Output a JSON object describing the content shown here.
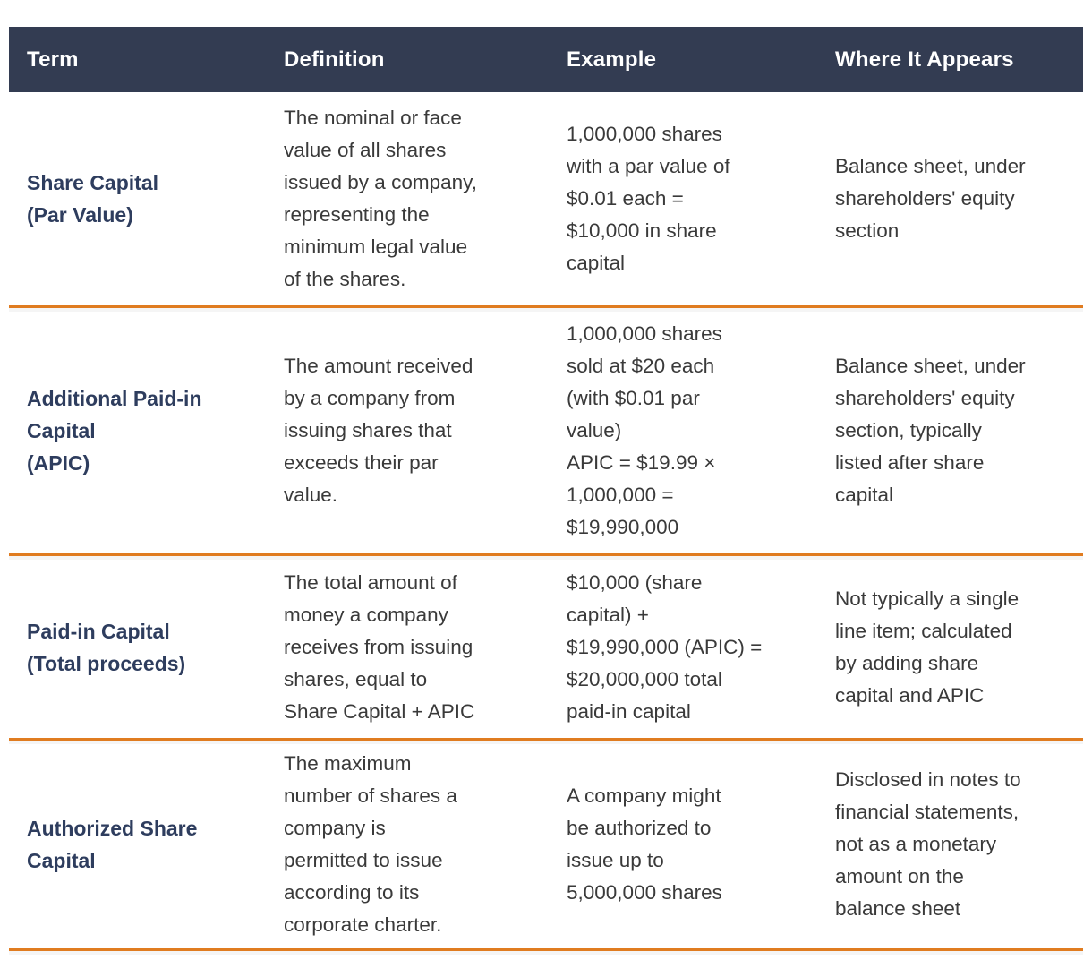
{
  "colors": {
    "header_background": "#333c52",
    "header_text": "#ffffff",
    "term_text": "#2e3d5e",
    "body_text": "#3a3a3a",
    "row_divider": "#e07c20",
    "page_background": "#ffffff"
  },
  "table": {
    "columns": [
      "Term",
      "Definition",
      "Example",
      "Where It Appears"
    ],
    "rows": [
      {
        "term": "Share Capital\n(Par Value)",
        "definition": "The nominal or face\nvalue of all shares\nissued by a company,\nrepresenting the\nminimum legal value\nof the shares.",
        "example": "1,000,000 shares\nwith a par value of\n$0.01 each =\n$10,000 in share\ncapital",
        "where": "Balance sheet, under\nshareholders' equity\nsection"
      },
      {
        "term": "Additional Paid-in\nCapital\n(APIC)",
        "definition": "The amount received\nby a company from\nissuing shares that\nexceeds their par\nvalue.",
        "example": "1,000,000 shares\nsold at $20 each\n(with $0.01 par\nvalue)\nAPIC = $19.99 ×\n1,000,000 =\n$19,990,000",
        "where": "Balance sheet, under\nshareholders' equity\nsection, typically\nlisted after share\ncapital"
      },
      {
        "term": "Paid-in Capital\n(Total proceeds)",
        "definition": "The total amount of\nmoney a company\nreceives from issuing\nshares, equal to\nShare Capital + APIC",
        "example": "$10,000 (share\ncapital) +\n$19,990,000 (APIC) =\n$20,000,000 total\npaid-in capital",
        "where": "Not typically a single\nline item; calculated\nby adding share\ncapital and APIC"
      },
      {
        "term": "Authorized Share\nCapital",
        "definition": "The maximum\nnumber of shares a\ncompany is\npermitted to issue\naccording to its\ncorporate charter.",
        "example": "A company might\nbe authorized to\nissue up to\n5,000,000 shares",
        "where": "Disclosed in notes to\nfinancial statements,\nnot as a monetary\namount on the\nbalance sheet"
      }
    ]
  }
}
